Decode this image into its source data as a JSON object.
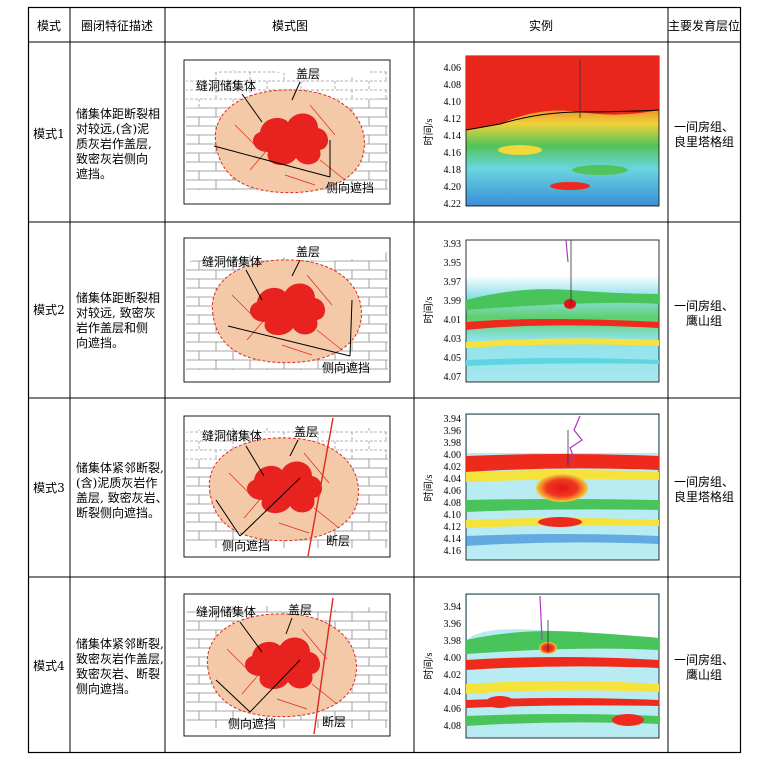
{
  "headers": {
    "mode": "模式",
    "desc": "圈闭特征描述",
    "diagram": "模式图",
    "example": "实例",
    "layers": "主要发育层位"
  },
  "diagram_labels": {
    "reservoir": "缝洞储集体",
    "caprock": "盖层",
    "lateral": "侧向遮挡",
    "fault": "断层"
  },
  "rows": [
    {
      "mode": "模式1",
      "desc": [
        "储集体距断裂相",
        "对较远,(含)泥",
        "质灰岩作盖层,",
        "致密灰岩侧向",
        "遮挡。"
      ],
      "layers": [
        "一间房组、",
        "良里塔格组"
      ],
      "ylabel": "时间/s",
      "ticks": [
        "4.06",
        "4.08",
        "4.10",
        "4.12",
        "4.14",
        "4.16",
        "4.18",
        "4.20",
        "4.22"
      ]
    },
    {
      "mode": "模式2",
      "desc": [
        "储集体距断裂相",
        "对较远, 致密灰",
        "岩作盖层和侧",
        "向遮挡。"
      ],
      "layers": [
        "一间房组、",
        "鹰山组"
      ],
      "ylabel": "时间/s",
      "ticks": [
        "3.93",
        "3.95",
        "3.97",
        "3.99",
        "4.01",
        "4.03",
        "4.05",
        "4.07"
      ]
    },
    {
      "mode": "模式3",
      "desc": [
        "储集体紧邻断裂,",
        "(含)泥质灰岩作",
        "盖层, 致密灰岩、",
        "断裂侧向遮挡。"
      ],
      "layers": [
        "一间房组、",
        "良里塔格组"
      ],
      "ylabel": "时间/s",
      "ticks": [
        "3.94",
        "3.96",
        "3.98",
        "4.00",
        "4.02",
        "4.04",
        "4.06",
        "4.08",
        "4.10",
        "4.12",
        "4.14",
        "4.16"
      ]
    },
    {
      "mode": "模式4",
      "desc": [
        "储集体紧邻断裂,",
        "致密灰岩作盖层,",
        "致密灰岩、断裂",
        "侧向遮挡。"
      ],
      "layers": [
        "一间房组、",
        "鹰山组"
      ],
      "ylabel": "时间/s",
      "ticks": [
        "3.94",
        "3.96",
        "3.98",
        "4.00",
        "4.02",
        "4.04",
        "4.06",
        "4.08"
      ]
    }
  ],
  "colors": {
    "reservoir_fill": "#f3c9a8",
    "reservoir_core": "#e8231f",
    "dash": "#e0281e",
    "fault": "#e0281e",
    "seis_red": "#ee2a1c",
    "seis_yellow": "#f5e23a",
    "seis_green": "#48c45a",
    "seis_cyan": "#5ed6e2",
    "seis_blue": "#2a7fd4"
  }
}
